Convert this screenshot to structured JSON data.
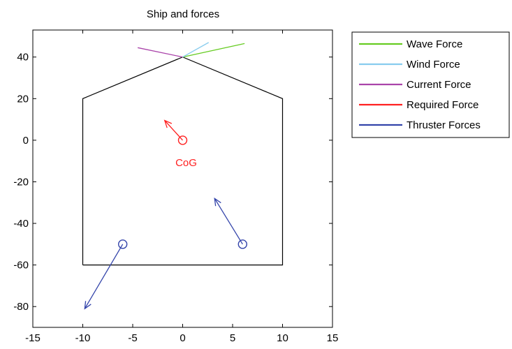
{
  "chart_data": {
    "type": "line",
    "title": "Ship and forces",
    "xlabel": "",
    "ylabel": "",
    "xlim": [
      -15,
      15
    ],
    "ylim": [
      -90,
      53
    ],
    "xticks": [
      -15,
      -10,
      -5,
      0,
      5,
      10,
      15
    ],
    "yticks": [
      -80,
      -60,
      -40,
      -20,
      0,
      20,
      40
    ],
    "grid": false,
    "legend_position": "outside-top-right",
    "ship_outline": {
      "color": "#000000",
      "x": [
        -10,
        -10,
        0,
        10,
        10,
        -10
      ],
      "y": [
        -60,
        20,
        40,
        20,
        -60,
        -60
      ]
    },
    "cog": {
      "x": 0,
      "y": 0,
      "label": "CoG",
      "color": "#ff2020"
    },
    "series": [
      {
        "name": "Wave Force",
        "color": "#66cc22",
        "segments": [
          {
            "x": [
              0,
              6.2
            ],
            "y": [
              40,
              46.5
            ]
          }
        ]
      },
      {
        "name": "Wind Force",
        "color": "#88ccee",
        "segments": [
          {
            "x": [
              0,
              2.6
            ],
            "y": [
              40,
              47
            ]
          }
        ]
      },
      {
        "name": "Current Force",
        "color": "#aa44aa",
        "segments": [
          {
            "x": [
              0,
              -4.5
            ],
            "y": [
              40,
              44.5
            ]
          }
        ]
      },
      {
        "name": "Required Force",
        "color": "#ff2020",
        "segments": [
          {
            "x": [
              0,
              -1.8
            ],
            "y": [
              0,
              9.5
            ]
          }
        ]
      },
      {
        "name": "Thruster Forces",
        "color": "#3344aa",
        "segments": [
          {
            "x": [
              -6,
              -9.8
            ],
            "y": [
              -50,
              -81
            ]
          },
          {
            "x": [
              6,
              3.2
            ],
            "y": [
              -50,
              -28
            ]
          }
        ]
      }
    ],
    "thrusters": [
      {
        "x": -6,
        "y": -50
      },
      {
        "x": 6,
        "y": -50
      }
    ]
  }
}
